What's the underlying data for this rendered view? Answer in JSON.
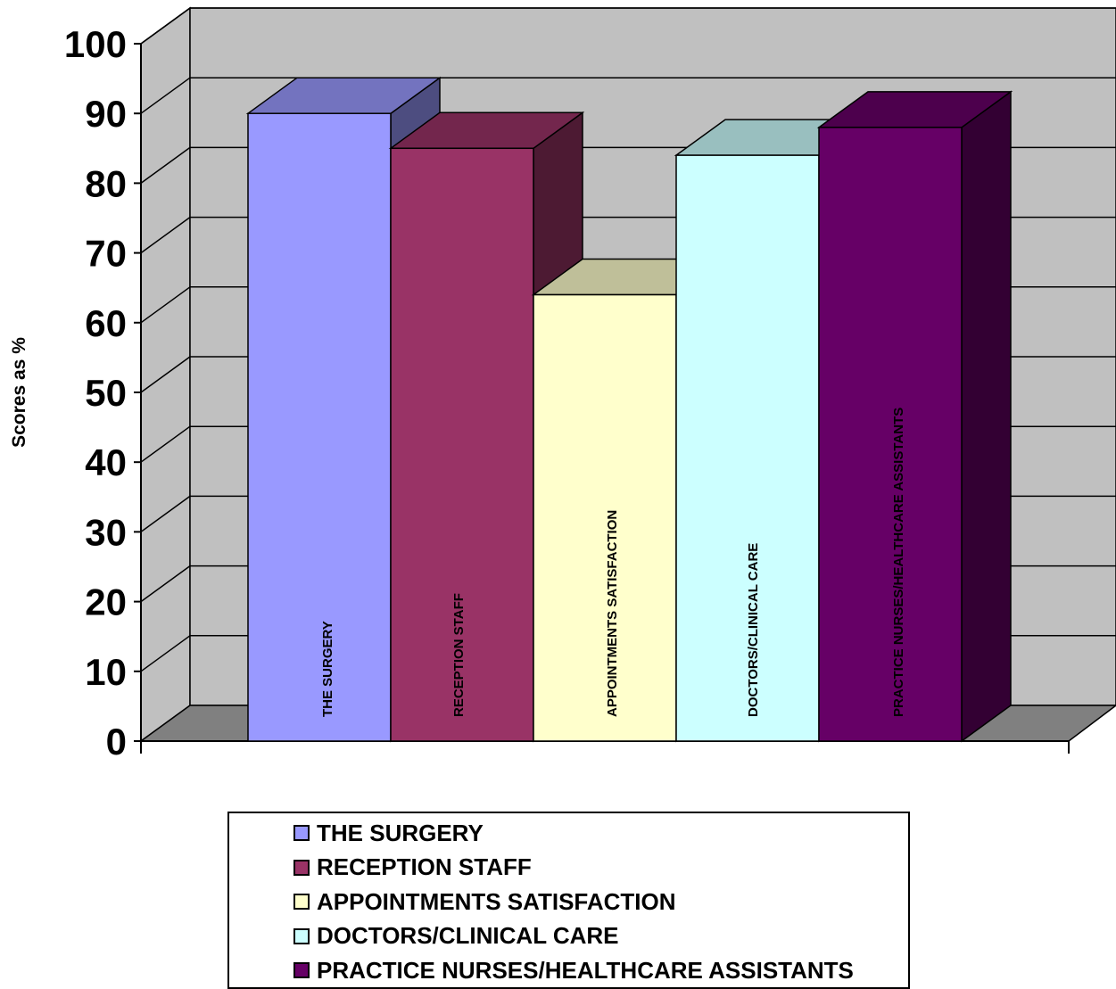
{
  "chart_data": {
    "type": "bar",
    "categories": [
      "THE SURGERY",
      "RECEPTION STAFF",
      "APPOINTMENTS SATISFACTION",
      "DOCTORS/CLINICAL CARE",
      "PRACTICE NURSES/HEALTHCARE ASSISTANTS"
    ],
    "values": [
      90,
      85,
      64,
      84,
      88
    ],
    "title": "",
    "xlabel": "",
    "ylabel": "Scores as %",
    "ylim": [
      0,
      100
    ],
    "yticks": [
      "0",
      "10",
      "20",
      "30",
      "40",
      "50",
      "60",
      "70",
      "80",
      "90",
      "100"
    ],
    "grid": true,
    "projection": "3d",
    "legend_position": "bottom",
    "colors": {
      "front": [
        "#9999ff",
        "#993366",
        "#ffffcc",
        "#ccffff",
        "#660066"
      ],
      "top": [
        "#7373bf",
        "#73264d",
        "#bfbf99",
        "#99bfbf",
        "#4d004d"
      ],
      "side": [
        "#4d4d80",
        "#4d1a33",
        "#808066",
        "#668080",
        "#330033"
      ],
      "wall": "#c0c0c0",
      "floor": "#808080"
    }
  }
}
